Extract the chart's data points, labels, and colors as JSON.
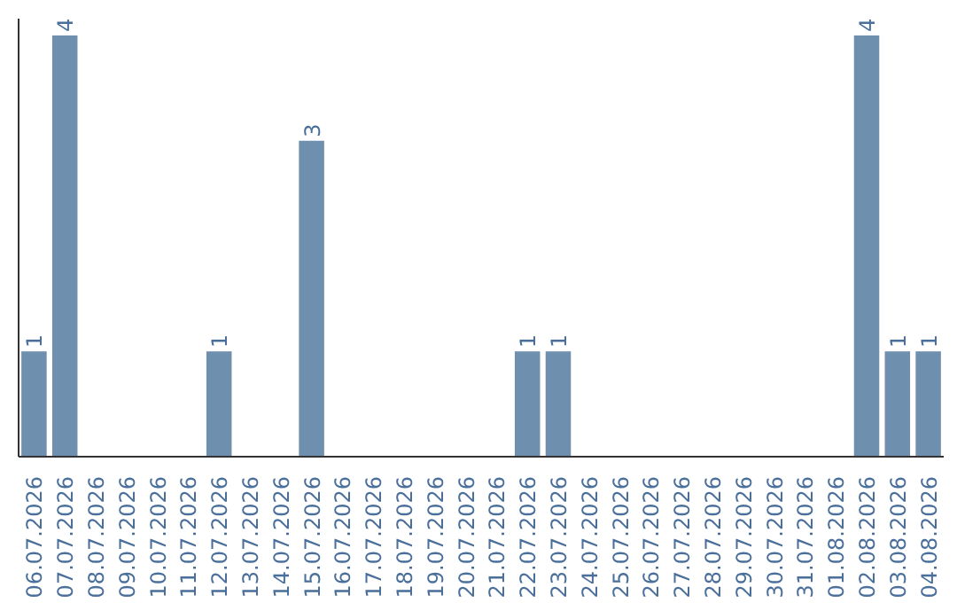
{
  "chart_data": {
    "type": "bar",
    "categories": [
      "06.07.2026",
      "07.07.2026",
      "08.07.2026",
      "09.07.2026",
      "10.07.2026",
      "11.07.2026",
      "12.07.2026",
      "13.07.2026",
      "14.07.2026",
      "15.07.2026",
      "16.07.2026",
      "17.07.2026",
      "18.07.2026",
      "19.07.2026",
      "20.07.2026",
      "21.07.2026",
      "22.07.2026",
      "23.07.2026",
      "24.07.2026",
      "25.07.2026",
      "26.07.2026",
      "27.07.2026",
      "28.07.2026",
      "29.07.2026",
      "30.07.2026",
      "31.07.2026",
      "01.08.2026",
      "02.08.2026",
      "03.08.2026",
      "04.08.2026"
    ],
    "values": [
      1,
      4,
      0,
      0,
      0,
      0,
      1,
      0,
      0,
      3,
      0,
      0,
      0,
      0,
      0,
      0,
      1,
      1,
      0,
      0,
      0,
      0,
      0,
      0,
      0,
      0,
      0,
      4,
      1,
      1
    ],
    "value_labels": [
      "1",
      "4",
      null,
      null,
      null,
      null,
      "1",
      null,
      null,
      "3",
      null,
      null,
      null,
      null,
      null,
      null,
      "1",
      "1",
      null,
      null,
      null,
      null,
      null,
      null,
      null,
      null,
      null,
      "4",
      "1",
      "1"
    ],
    "color": "#6f8fae",
    "tick_labels": "x",
    "grid": false
  }
}
